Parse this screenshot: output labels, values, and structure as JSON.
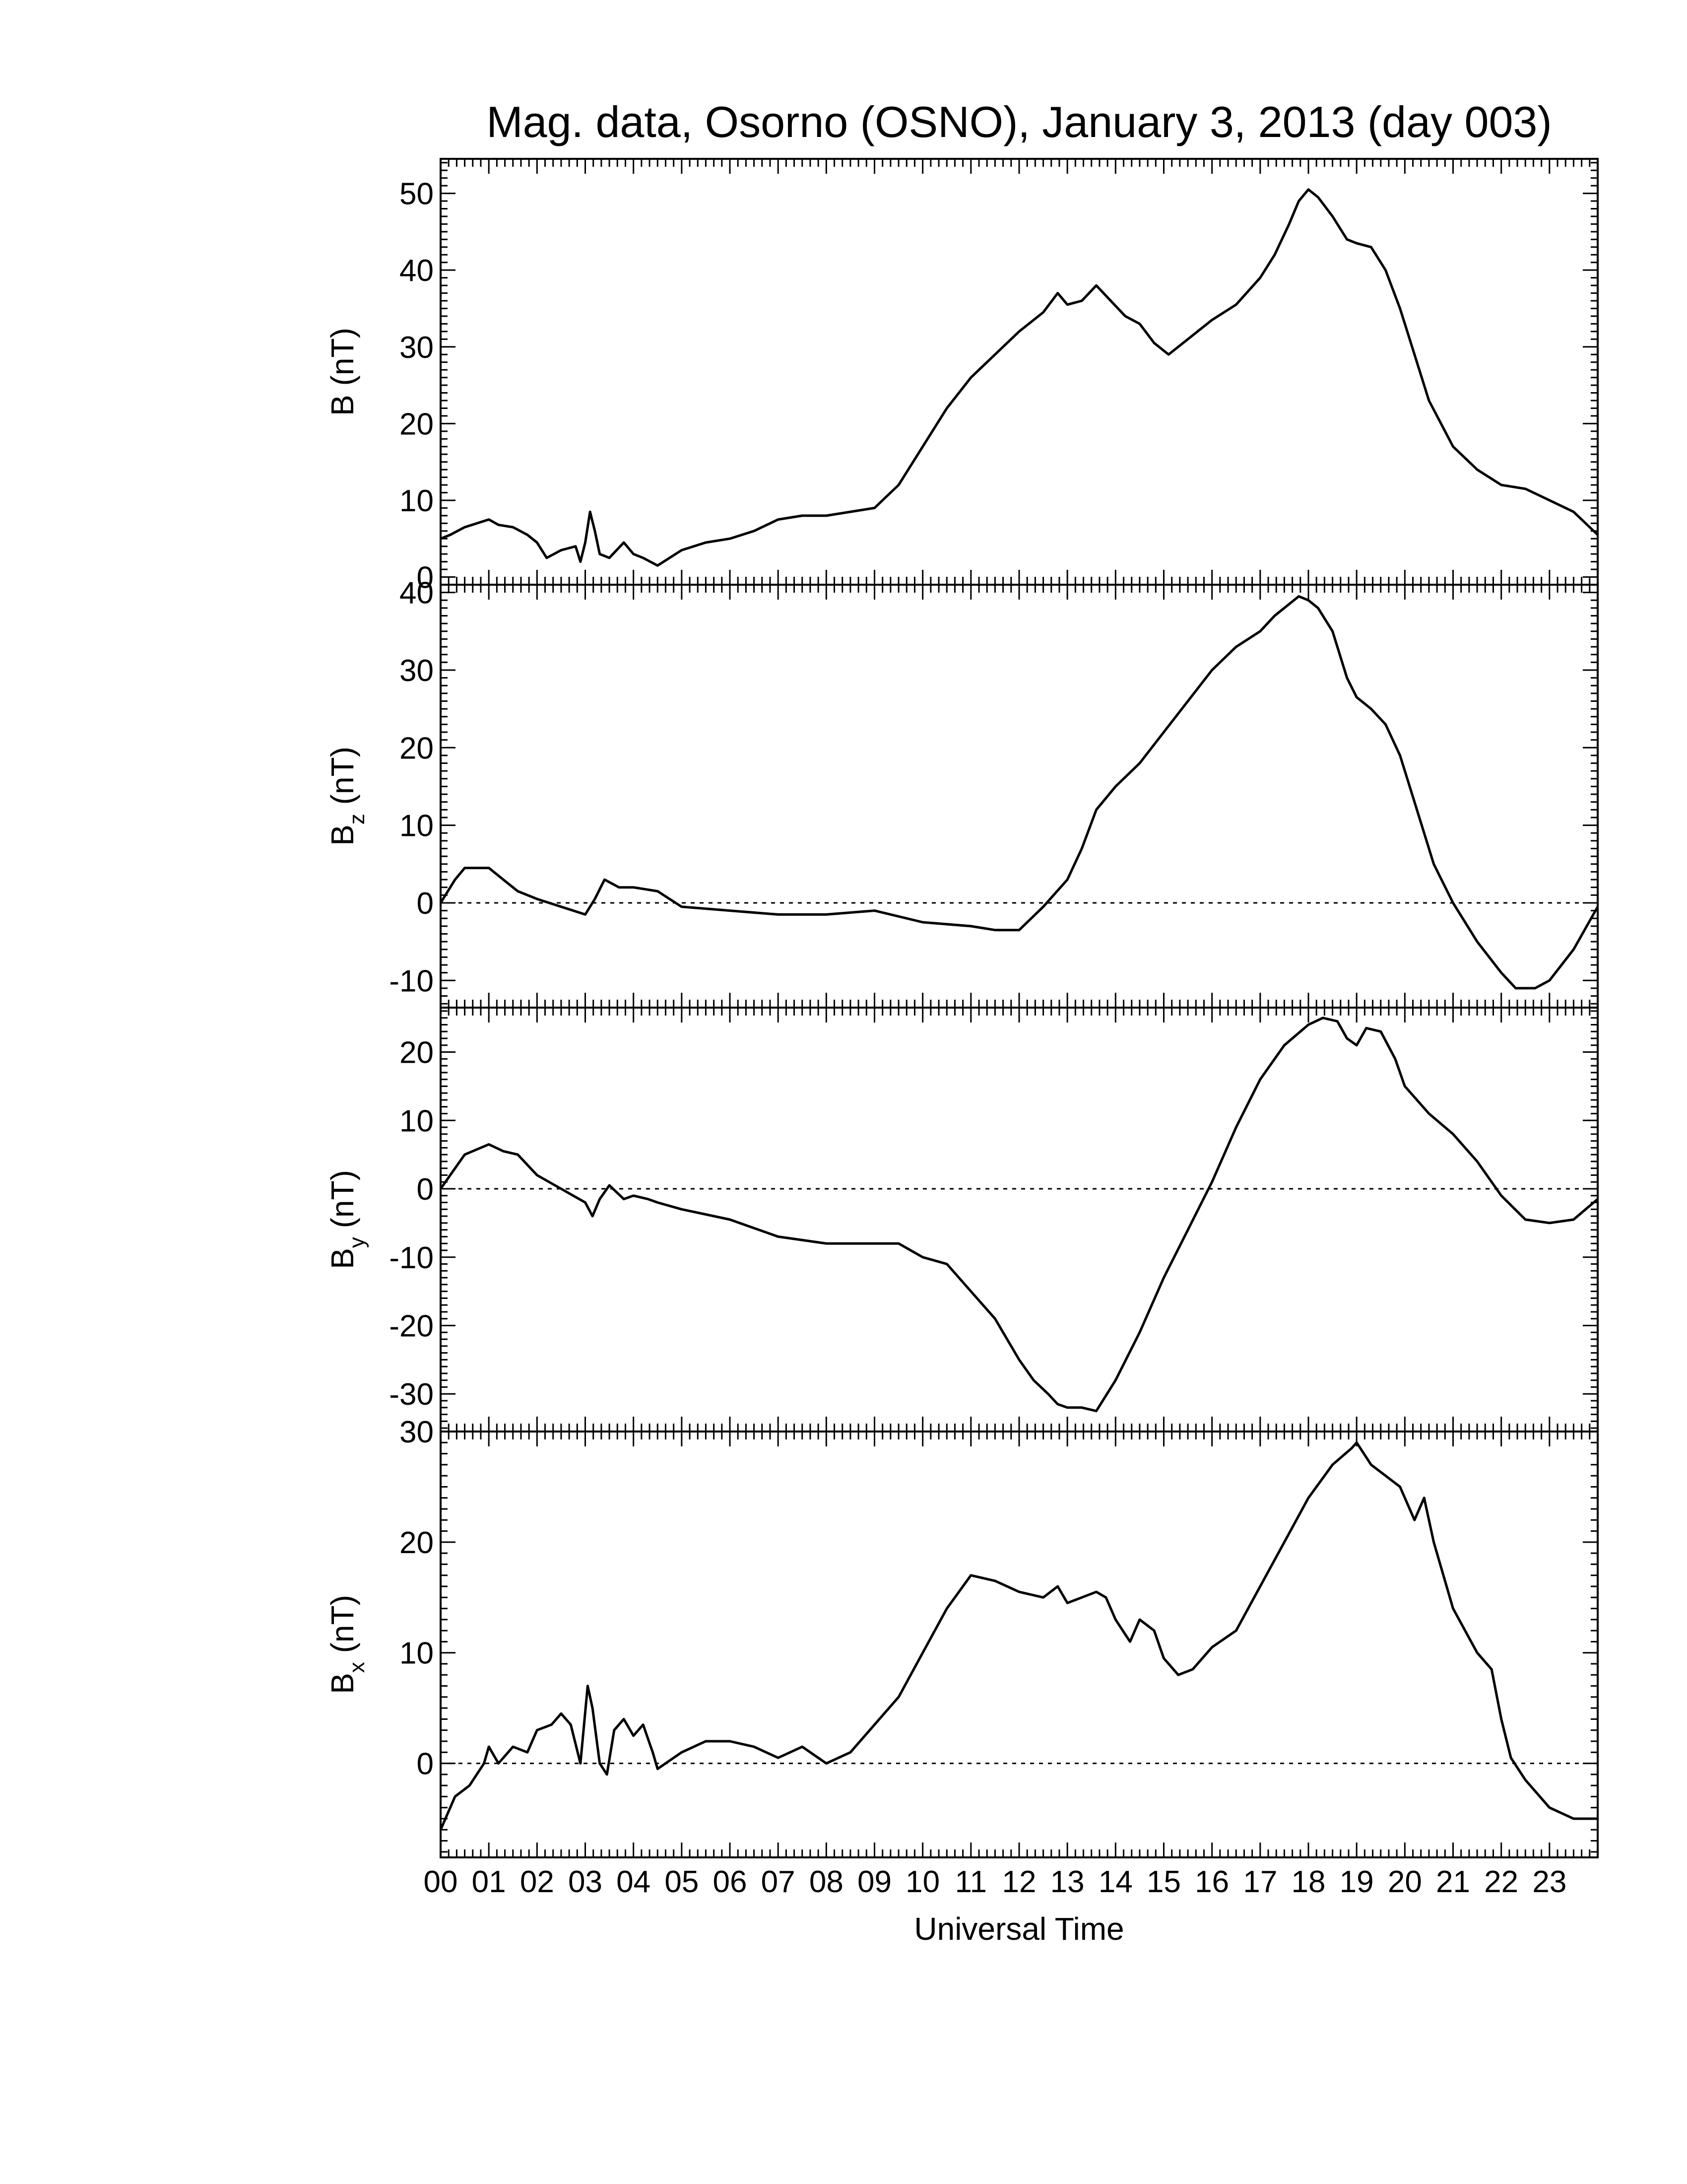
{
  "chart_data": {
    "type": "line",
    "title": "Mag. data, Osorno (OSNO), January 3, 2013 (day 003)",
    "xlabel": "Universal Time",
    "x_unit": "hours UT",
    "xlim": [
      0,
      24
    ],
    "x_tick_labels": [
      "00",
      "01",
      "02",
      "03",
      "04",
      "05",
      "06",
      "07",
      "08",
      "09",
      "10",
      "11",
      "12",
      "13",
      "14",
      "15",
      "16",
      "17",
      "18",
      "19",
      "20",
      "21",
      "22",
      "23"
    ],
    "panels": [
      {
        "ylabel_main": "B",
        "ylabel_sub": "",
        "ylabel_unit": " (nT)",
        "ylim": [
          -1,
          54.5
        ],
        "yticks": [
          0,
          10,
          20,
          30,
          40,
          50
        ],
        "zero_line": false,
        "series": [
          {
            "x": [
              0,
              0.2,
              0.5,
              1.0,
              1.2,
              1.5,
              1.8,
              2.0,
              2.2,
              2.5,
              2.8,
              2.9,
              3.0,
              3.1,
              3.2,
              3.3,
              3.5,
              3.8,
              4.0,
              4.2,
              4.5,
              5.0,
              5.5,
              6.0,
              6.5,
              7.0,
              7.5,
              8.0,
              8.5,
              9.0,
              9.5,
              10.0,
              10.5,
              11.0,
              11.5,
              12.0,
              12.5,
              12.8,
              13.0,
              13.3,
              13.6,
              13.9,
              14.2,
              14.5,
              14.8,
              15.1,
              15.5,
              16.0,
              16.5,
              17.0,
              17.3,
              17.6,
              17.8,
              18.0,
              18.2,
              18.5,
              18.8,
              19.0,
              19.3,
              19.6,
              19.9,
              20.2,
              20.5,
              21.0,
              21.5,
              22.0,
              22.5,
              23.0,
              23.5,
              24.0
            ],
            "y": [
              5,
              5.5,
              6.5,
              7.5,
              6.8,
              6.5,
              5.5,
              4.5,
              2.5,
              3.5,
              4,
              2,
              4.5,
              8.5,
              6,
              3,
              2.5,
              4.5,
              3,
              2.5,
              1.5,
              3.5,
              4.5,
              5,
              6,
              7.5,
              8,
              8,
              8.5,
              9,
              12,
              17,
              22,
              26,
              29,
              32,
              34.5,
              37,
              35.5,
              36,
              38,
              36,
              34,
              33,
              30.5,
              29,
              31,
              33.5,
              35.5,
              39,
              42,
              46,
              49,
              50.5,
              49.5,
              47,
              44,
              43.5,
              43,
              40,
              35,
              29,
              23,
              17,
              14,
              12,
              11.5,
              10,
              8.5,
              5.5
            ]
          }
        ]
      },
      {
        "ylabel_main": "B",
        "ylabel_sub": "z",
        "ylabel_unit": " (nT)",
        "ylim": [
          -13.5,
          41
        ],
        "yticks": [
          -10,
          0,
          10,
          20,
          30,
          40
        ],
        "zero_line": true,
        "series": [
          {
            "x": [
              0,
              0.3,
              0.5,
              1.0,
              1.3,
              1.6,
              2.0,
              2.5,
              3.0,
              3.2,
              3.4,
              3.7,
              4.0,
              4.5,
              5.0,
              6.0,
              7.0,
              8.0,
              9.0,
              10.0,
              11.0,
              11.5,
              12.0,
              12.5,
              13.0,
              13.3,
              13.6,
              14.0,
              14.5,
              15.0,
              15.5,
              16.0,
              16.5,
              17.0,
              17.3,
              17.6,
              17.8,
              18.0,
              18.2,
              18.5,
              18.8,
              19.0,
              19.3,
              19.6,
              19.9,
              20.2,
              20.6,
              21.0,
              21.5,
              22.0,
              22.3,
              22.7,
              23.0,
              23.5,
              24.0
            ],
            "y": [
              0,
              3,
              4.5,
              4.5,
              3,
              1.5,
              0.5,
              -0.5,
              -1.5,
              0.5,
              3,
              2,
              2,
              1.5,
              -0.5,
              -1,
              -1.5,
              -1.5,
              -1,
              -2.5,
              -3,
              -3.5,
              -3.5,
              -0.5,
              3,
              7,
              12,
              15,
              18,
              22,
              26,
              30,
              33,
              35,
              37,
              38.5,
              39.5,
              39,
              38,
              35,
              29,
              26.5,
              25,
              23,
              19,
              13,
              5,
              0,
              -5,
              -9,
              -11,
              -11,
              -10,
              -6,
              -0.5
            ]
          }
        ]
      },
      {
        "ylabel_main": "B",
        "ylabel_sub": "y",
        "ylabel_unit": " (nT)",
        "ylim": [
          -35.5,
          26.5
        ],
        "yticks": [
          -30,
          -20,
          -10,
          0,
          10,
          20
        ],
        "zero_line": true,
        "series": [
          {
            "x": [
              0,
              0.3,
              0.5,
              1.0,
              1.3,
              1.6,
              2.0,
              2.5,
              3.0,
              3.15,
              3.3,
              3.5,
              3.8,
              4.0,
              4.3,
              4.5,
              5.0,
              6.0,
              7.0,
              8.0,
              9.0,
              9.5,
              10.0,
              10.5,
              11.0,
              11.5,
              12.0,
              12.3,
              12.6,
              12.8,
              13.0,
              13.3,
              13.6,
              14.0,
              14.5,
              15.0,
              15.5,
              16.0,
              16.5,
              17.0,
              17.5,
              18.0,
              18.3,
              18.6,
              18.8,
              19.0,
              19.2,
              19.5,
              19.8,
              20.0,
              20.5,
              21.0,
              21.5,
              22.0,
              22.5,
              23.0,
              23.5,
              24.0
            ],
            "y": [
              0,
              3,
              5,
              6.5,
              5.5,
              5,
              2,
              0,
              -2,
              -4,
              -1.5,
              0.5,
              -1.5,
              -1,
              -1.5,
              -2,
              -3,
              -4.5,
              -7,
              -8,
              -8,
              -8,
              -10,
              -11,
              -15,
              -19,
              -25,
              -28,
              -30,
              -31.5,
              -32,
              -32,
              -32.5,
              -28,
              -21,
              -13,
              -6,
              1,
              9,
              16,
              21,
              24,
              25,
              24.5,
              22,
              21,
              23.5,
              23,
              19,
              15,
              11,
              8,
              4,
              -1,
              -4.5,
              -5,
              -4.5,
              -1.5
            ]
          }
        ]
      },
      {
        "ylabel_main": "B",
        "ylabel_sub": "x",
        "ylabel_unit": " (nT)",
        "ylim": [
          -8.5,
          30
        ],
        "yticks": [
          0,
          10,
          20,
          30
        ],
        "zero_line": true,
        "series": [
          {
            "x": [
              0,
              0.3,
              0.6,
              0.9,
              1.0,
              1.2,
              1.5,
              1.8,
              2.0,
              2.3,
              2.5,
              2.7,
              2.9,
              3.05,
              3.15,
              3.3,
              3.45,
              3.6,
              3.8,
              4.0,
              4.2,
              4.4,
              4.5,
              5.0,
              5.5,
              6.0,
              6.5,
              7.0,
              7.5,
              8.0,
              8.5,
              9.0,
              9.5,
              10.0,
              10.5,
              11.0,
              11.5,
              12.0,
              12.5,
              12.8,
              13.0,
              13.3,
              13.6,
              13.8,
              14.0,
              14.3,
              14.5,
              14.8,
              15.0,
              15.3,
              15.6,
              16.0,
              16.5,
              17.0,
              17.5,
              18.0,
              18.5,
              18.9,
              19.0,
              19.3,
              19.6,
              19.9,
              20.2,
              20.4,
              20.6,
              21.0,
              21.5,
              21.8,
              22.0,
              22.2,
              22.5,
              23.0,
              23.5,
              24.0
            ],
            "y": [
              -6,
              -3,
              -2,
              0,
              1.5,
              0,
              1.5,
              1,
              3,
              3.5,
              4.5,
              3.5,
              0,
              7,
              5,
              0,
              -1,
              3,
              4,
              2.5,
              3.5,
              1,
              -0.5,
              1,
              2,
              2,
              1.5,
              0.5,
              1.5,
              0,
              1,
              3.5,
              6,
              10,
              14,
              17,
              16.5,
              15.5,
              15,
              16,
              14.5,
              15,
              15.5,
              15,
              13,
              11,
              13,
              12,
              9.5,
              8,
              8.5,
              10.5,
              12,
              16,
              20,
              24,
              27,
              28.5,
              29,
              27,
              26,
              25,
              22,
              24,
              20,
              14,
              10,
              8.5,
              4,
              0.5,
              -1.5,
              -4,
              -5,
              -5
            ]
          }
        ]
      }
    ]
  }
}
